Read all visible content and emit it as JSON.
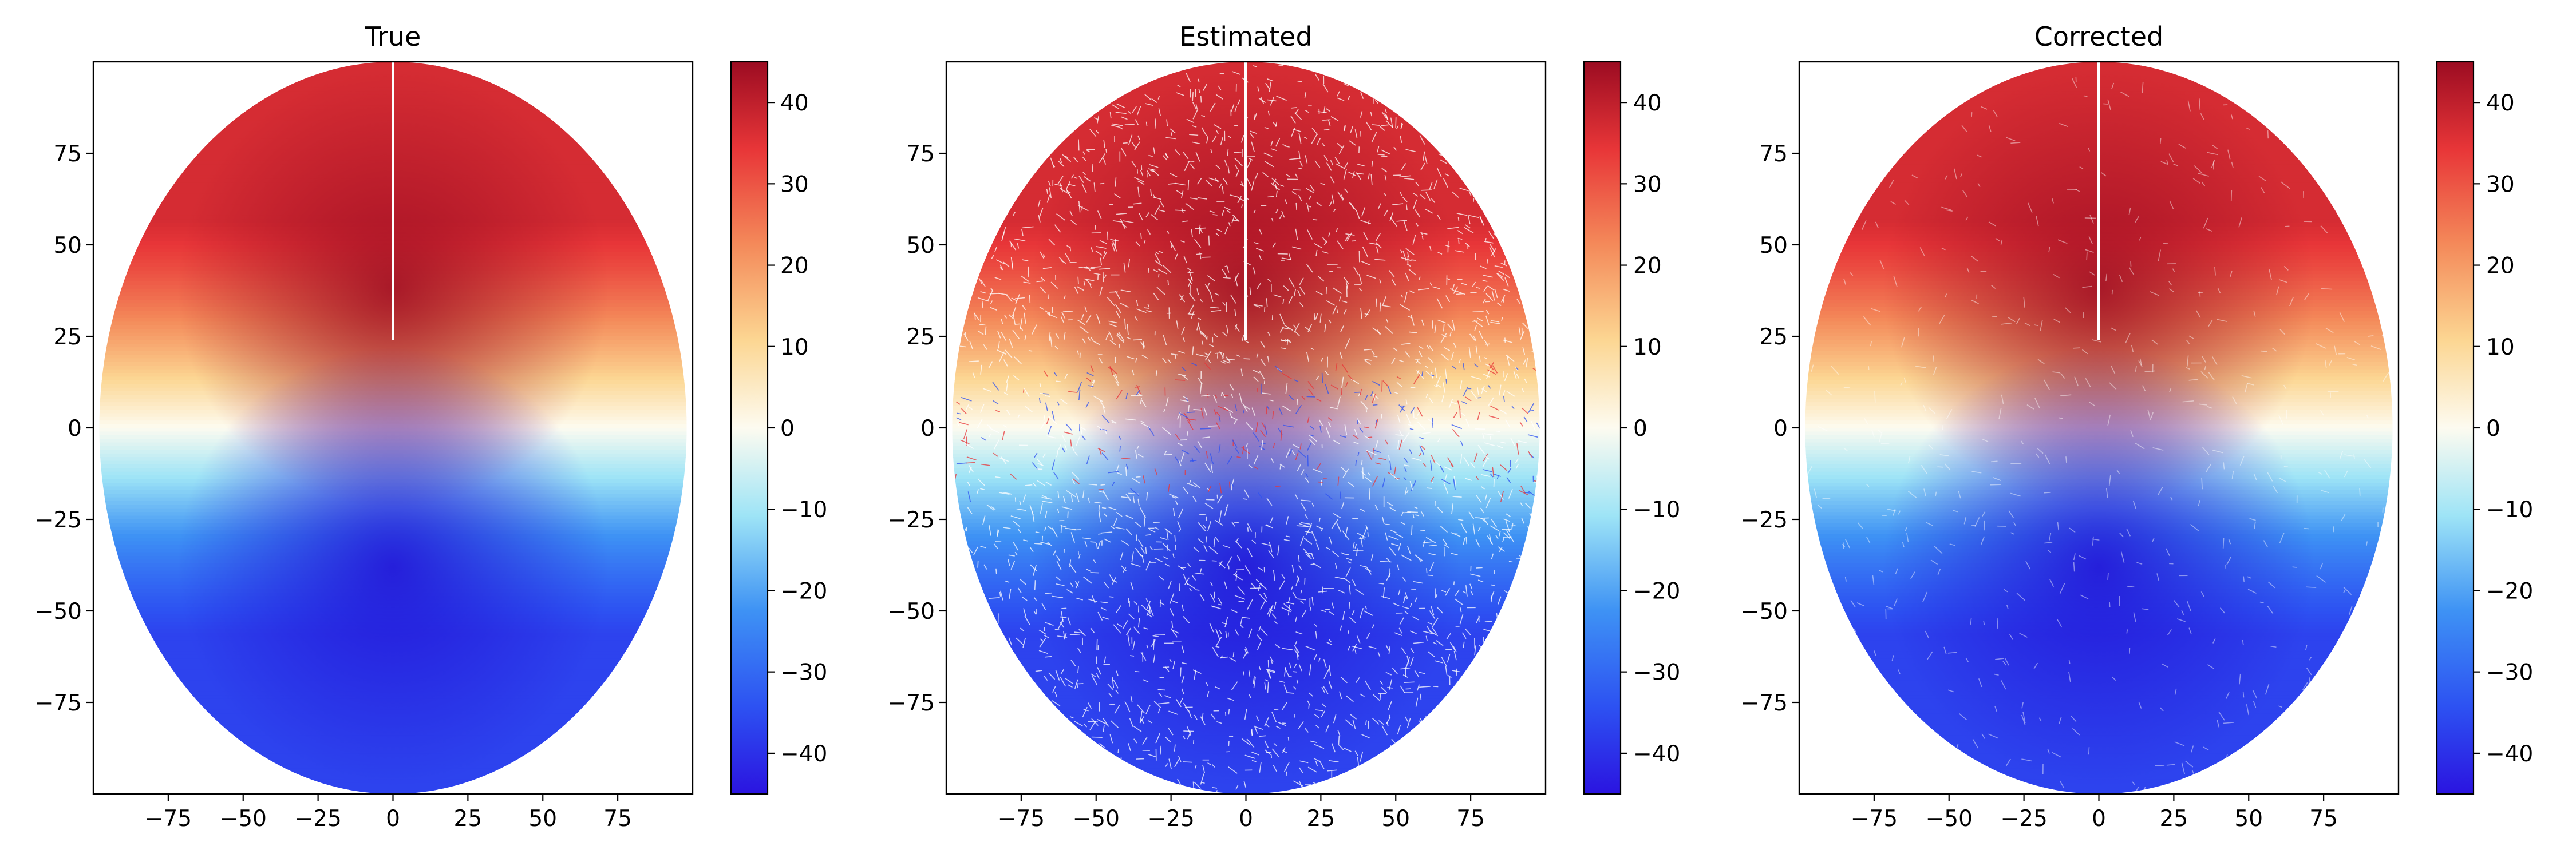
{
  "chart_data": [
    {
      "type": "heatmap",
      "title": "True",
      "xlim": [
        -100,
        100
      ],
      "ylim": [
        -100,
        100
      ],
      "xticks": [
        "−75",
        "−50",
        "−25",
        "0",
        "25",
        "50",
        "75"
      ],
      "yticks": [
        "75",
        "50",
        "25",
        "0",
        "−25",
        "−50",
        "−75"
      ],
      "colorbar": {
        "range": [
          -45,
          45
        ],
        "ticks": [
          "40",
          "30",
          "20",
          "10",
          "0",
          "−10",
          "−20",
          "−30",
          "−40"
        ],
        "colormap": "RdYlBu_r"
      },
      "field": {
        "shape": "ellipse",
        "max": 45,
        "min": -45,
        "peak_y": 38,
        "trough_y": -38,
        "noise": "none"
      }
    },
    {
      "type": "heatmap",
      "title": "Estimated",
      "xlim": [
        -100,
        100
      ],
      "ylim": [
        -100,
        100
      ],
      "xticks": [
        "−75",
        "−50",
        "−25",
        "0",
        "25",
        "50",
        "75"
      ],
      "yticks": [
        "75",
        "50",
        "25",
        "0",
        "−25",
        "−50",
        "−75"
      ],
      "colorbar": {
        "range": [
          -45,
          45
        ],
        "ticks": [
          "40",
          "30",
          "20",
          "10",
          "0",
          "−10",
          "−20",
          "−30",
          "−40"
        ],
        "colormap": "RdYlBu_r"
      },
      "field": {
        "shape": "ellipse",
        "max": 45,
        "min": -45,
        "peak_y": 38,
        "trough_y": -38,
        "noise": "heavy"
      }
    },
    {
      "type": "heatmap",
      "title": "Corrected",
      "xlim": [
        -100,
        100
      ],
      "ylim": [
        -100,
        100
      ],
      "xticks": [
        "−75",
        "−50",
        "−25",
        "0",
        "25",
        "50",
        "75"
      ],
      "yticks": [
        "75",
        "50",
        "25",
        "0",
        "−25",
        "−50",
        "−75"
      ],
      "colorbar": {
        "range": [
          -45,
          45
        ],
        "ticks": [
          "40",
          "30",
          "20",
          "10",
          "0",
          "−10",
          "−20",
          "−30",
          "−40"
        ],
        "colormap": "RdYlBu_r"
      },
      "field": {
        "shape": "ellipse",
        "max": 45,
        "min": -45,
        "peak_y": 38,
        "trough_y": -38,
        "noise": "light"
      }
    }
  ]
}
